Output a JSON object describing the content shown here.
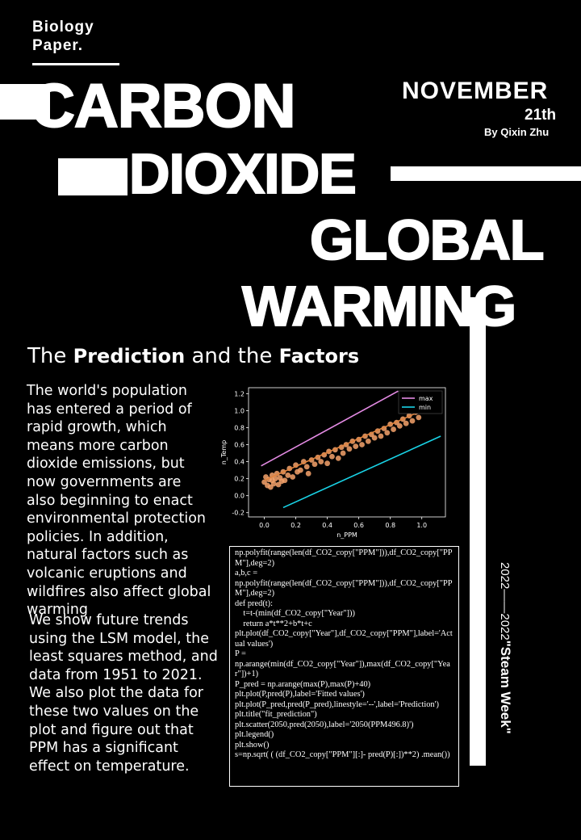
{
  "header": {
    "tag_line1": "Biology",
    "tag_line2": "Paper.",
    "title_words": [
      "CARBON",
      "DIOXIDE",
      "GLOBAL",
      "WARMING"
    ],
    "month": "NOVEMBER",
    "day": "21th",
    "byline": "By Qixin Zhu"
  },
  "subtitle": {
    "w1": "The ",
    "w2": "Prediction",
    "w3": " and the ",
    "w4": "Factors"
  },
  "body": {
    "paragraph1": "The world's population has entered a period of rapid growth, which means more carbon dioxide emissions, but now governments are also beginning to enact environmental protection policies. In addition, natural factors such as volcanic eruptions and wildfires also affect global warming",
    "paragraph2": "We show future trends using the LSM model, the least squares method, and data from 1951 to 2021. We also plot the data for these two values on the plot and figure out that PPM has a significant effect on temperature."
  },
  "code_lines": [
    "np.polyfit(range(len(df_CO2_copy[\"PPM\"])),df_CO2_copy[\"PPM\"],deg=2)",
    "a,b,c =",
    "np.polyfit(range(len(df_CO2_copy[\"PPM\"])),df_CO2_copy[\"PPM\"],deg=2)",
    "def pred(t):",
    "    t=t-(min(df_CO2_copy[\"Year\"]))",
    "    return a*t**2+b*t+c",
    "plt.plot(df_CO2_copy[\"Year\"],df_CO2_copy[\"PPM\"],label='Actual values')",
    "P =",
    "np.arange(min(df_CO2_copy[\"Year\"]),max(df_CO2_copy[\"Year\"])+1)",
    "P_pred = np.arange(max(P),max(P)+40)",
    "plt.plot(P,pred(P),label='Fitted values')",
    "plt.plot(P_pred,pred(P_pred),linestyle='--',label='Prediction')",
    "plt.title(\"fit_prediction\")",
    "plt.scatter(2050,pred(2050),label='2050(PPM496.8)')",
    "plt.legend()",
    "plt.show()",
    "s=np.sqrt( ( (df_CO2_copy[\"PPM\"][:]- pred(P)[:])**2) .mean())"
  ],
  "vertical_text": {
    "years": "2022——2022",
    "event": "\"Steam Week\""
  },
  "chart_data": {
    "type": "scatter",
    "xlabel": "n_PPM",
    "ylabel": "n_Temp",
    "xlim": [
      -0.1,
      1.15
    ],
    "ylim": [
      -0.25,
      1.27
    ],
    "xticks": [
      "0.0",
      "0.2",
      "0.4",
      "0.6",
      "0.8",
      "1.0"
    ],
    "yticks": [
      "-0.2",
      "0.0",
      "0.2",
      "0.4",
      "0.6",
      "0.8",
      "1.0",
      "1.2"
    ],
    "legend": [
      "max",
      "min"
    ],
    "legend_position": "top-right",
    "colors": {
      "points": "#f4a26b",
      "fit": "#f4a26b",
      "max": "#e48be4",
      "min": "#19d3e6",
      "background": "#000000"
    },
    "lines": {
      "max": [
        [
          -0.02,
          0.35
        ],
        [
          0.85,
          1.23
        ]
      ],
      "min": [
        [
          0.12,
          -0.14
        ],
        [
          1.12,
          0.7
        ]
      ],
      "fit": [
        [
          0.0,
          0.18
        ],
        [
          1.0,
          1.0
        ]
      ]
    },
    "points": [
      [
        0.0,
        0.16
      ],
      [
        0.01,
        0.22
      ],
      [
        0.02,
        0.12
      ],
      [
        0.03,
        0.19
      ],
      [
        0.04,
        0.1
      ],
      [
        0.05,
        0.18
      ],
      [
        0.05,
        0.24
      ],
      [
        0.06,
        0.14
      ],
      [
        0.07,
        0.2
      ],
      [
        0.08,
        0.26
      ],
      [
        0.09,
        0.13
      ],
      [
        0.1,
        0.21
      ],
      [
        0.11,
        0.17
      ],
      [
        0.12,
        0.28
      ],
      [
        0.13,
        0.18
      ],
      [
        0.15,
        0.24
      ],
      [
        0.16,
        0.32
      ],
      [
        0.18,
        0.22
      ],
      [
        0.2,
        0.36
      ],
      [
        0.21,
        0.28
      ],
      [
        0.23,
        0.3
      ],
      [
        0.25,
        0.4
      ],
      [
        0.27,
        0.34
      ],
      [
        0.28,
        0.26
      ],
      [
        0.3,
        0.42
      ],
      [
        0.32,
        0.37
      ],
      [
        0.34,
        0.45
      ],
      [
        0.36,
        0.4
      ],
      [
        0.38,
        0.48
      ],
      [
        0.4,
        0.38
      ],
      [
        0.41,
        0.52
      ],
      [
        0.43,
        0.46
      ],
      [
        0.45,
        0.54
      ],
      [
        0.47,
        0.44
      ],
      [
        0.49,
        0.57
      ],
      [
        0.5,
        0.5
      ],
      [
        0.52,
        0.6
      ],
      [
        0.54,
        0.55
      ],
      [
        0.56,
        0.64
      ],
      [
        0.58,
        0.58
      ],
      [
        0.6,
        0.66
      ],
      [
        0.62,
        0.6
      ],
      [
        0.64,
        0.7
      ],
      [
        0.66,
        0.64
      ],
      [
        0.68,
        0.72
      ],
      [
        0.7,
        0.68
      ],
      [
        0.72,
        0.76
      ],
      [
        0.74,
        0.7
      ],
      [
        0.76,
        0.79
      ],
      [
        0.78,
        0.74
      ],
      [
        0.8,
        0.84
      ],
      [
        0.82,
        0.78
      ],
      [
        0.84,
        0.86
      ],
      [
        0.86,
        0.82
      ],
      [
        0.88,
        0.9
      ],
      [
        0.9,
        0.85
      ],
      [
        0.92,
        0.94
      ],
      [
        0.94,
        0.88
      ],
      [
        0.96,
        0.98
      ],
      [
        0.98,
        0.92
      ],
      [
        1.0,
        1.0
      ]
    ]
  }
}
